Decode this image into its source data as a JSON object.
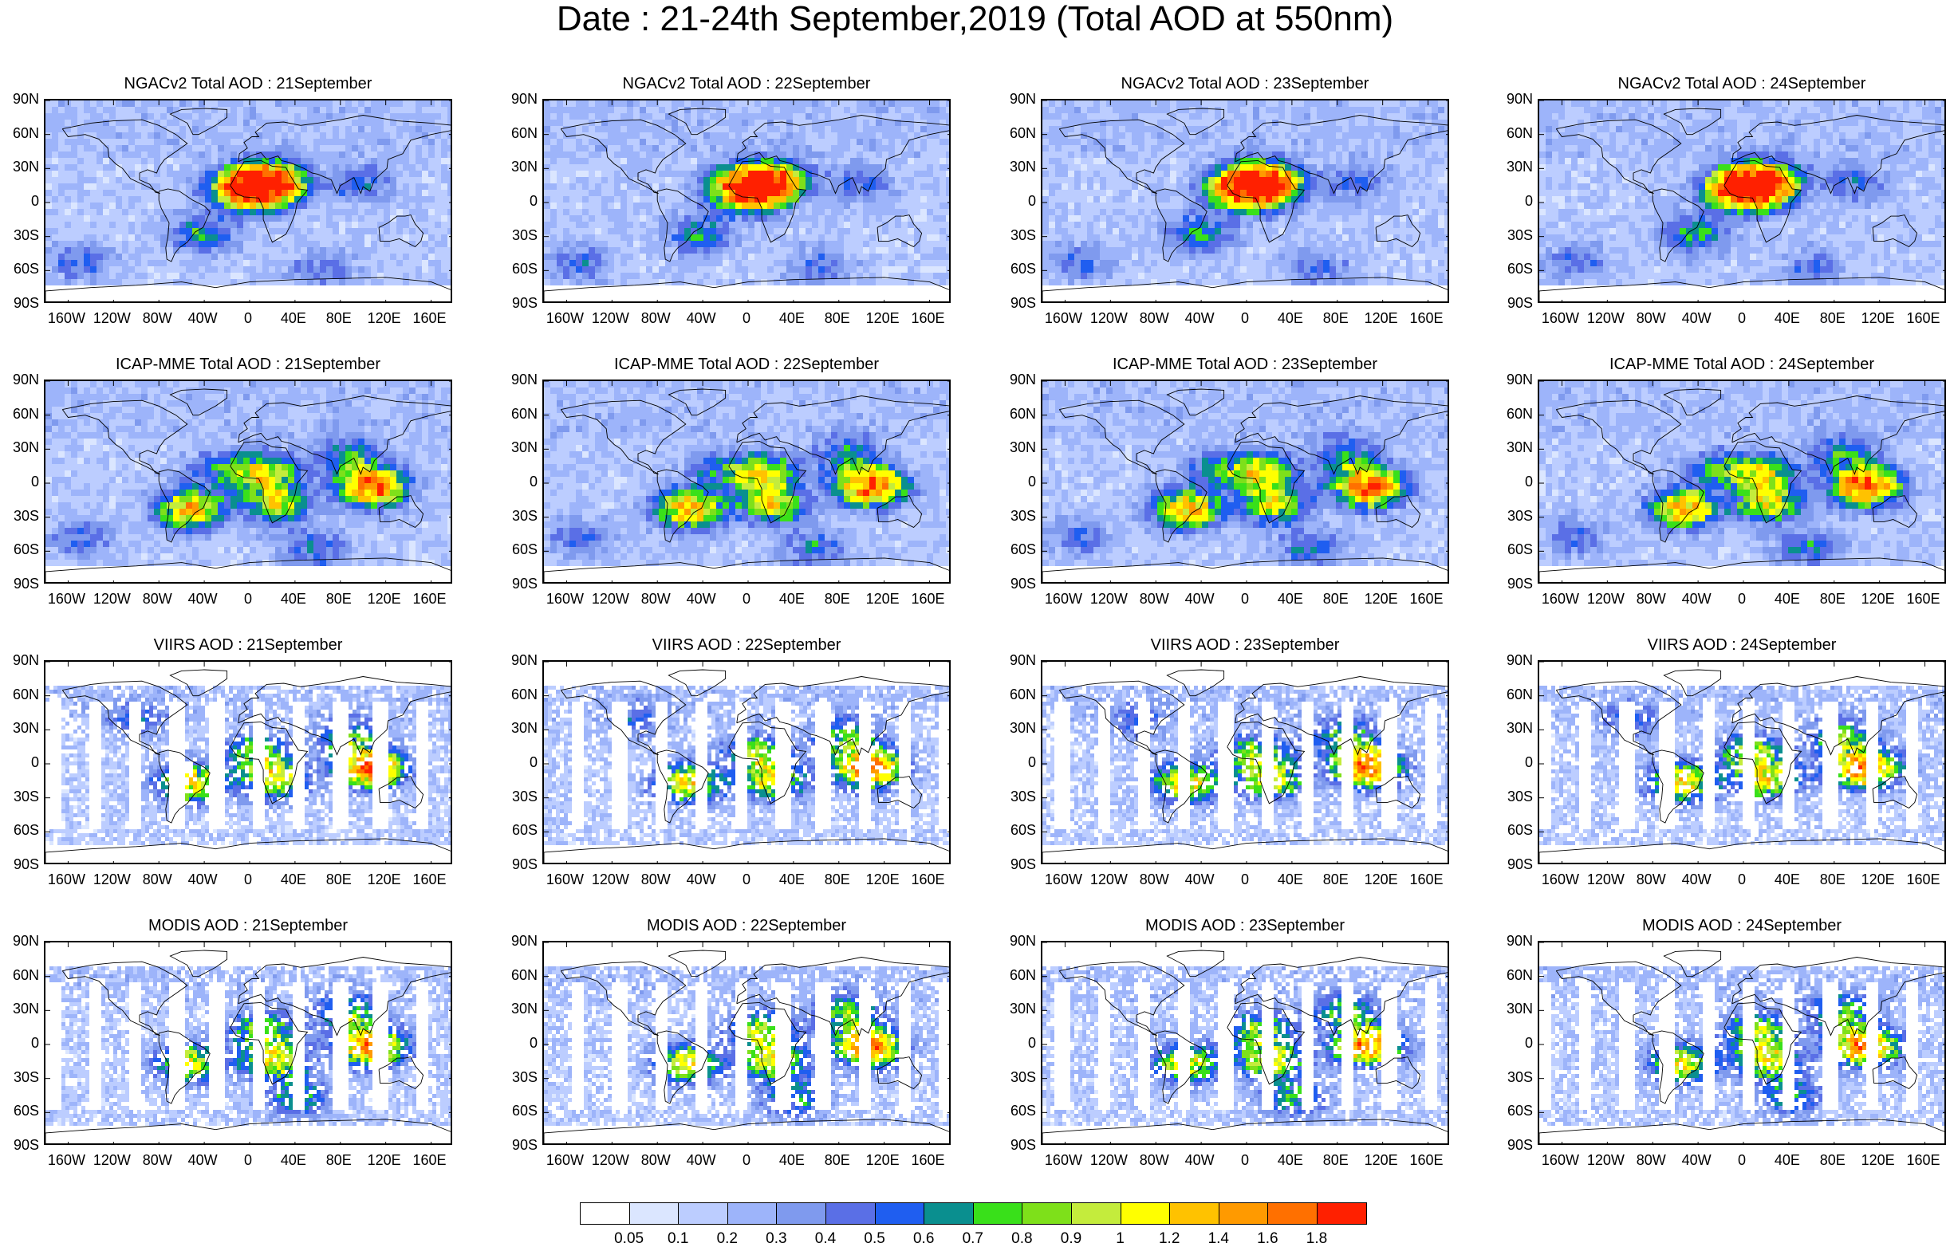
{
  "title": "Date : 21-24th September,2019 (Total AOD at 550nm)",
  "rows": [
    {
      "source": "NGACv2",
      "titles": [
        "NGACv2 Total AOD : 21September",
        "NGACv2 Total AOD : 22September",
        "NGACv2 Total AOD : 23September",
        "NGACv2 Total AOD : 24September"
      ]
    },
    {
      "source": "ICAP-MME",
      "titles": [
        "ICAP-MME Total AOD : 21September",
        "ICAP-MME Total AOD : 22September",
        "ICAP-MME Total AOD : 23September",
        "ICAP-MME Total AOD : 24September"
      ]
    },
    {
      "source": "VIIRS",
      "titles": [
        "VIIRS AOD : 21September",
        "VIIRS AOD : 22September",
        "VIIRS AOD : 23September",
        "VIIRS AOD : 24September"
      ]
    },
    {
      "source": "MODIS",
      "titles": [
        "MODIS AOD : 21September",
        "MODIS AOD : 22September",
        "MODIS AOD : 23September",
        "MODIS AOD : 24September"
      ]
    }
  ],
  "axes": {
    "lat_labels": [
      "90N",
      "60N",
      "30N",
      "0",
      "30S",
      "60S",
      "90S"
    ],
    "lon_labels": [
      "160W",
      "120W",
      "80W",
      "40W",
      "0",
      "40E",
      "80E",
      "120E",
      "160E"
    ]
  },
  "colorbar": {
    "labels": [
      "0.05",
      "0.1",
      "0.2",
      "0.3",
      "0.4",
      "0.5",
      "0.6",
      "0.7",
      "0.8",
      "0.9",
      "1",
      "1.2",
      "1.4",
      "1.6",
      "1.8"
    ],
    "colors": [
      "#ffffff",
      "#dbe6ff",
      "#bccdff",
      "#9db4fa",
      "#7f9aee",
      "#5a6fe6",
      "#1f5ef0",
      "#0a8f8f",
      "#39e01a",
      "#7ee01a",
      "#c4ec3c",
      "#ffff00",
      "#ffc200",
      "#ff9a00",
      "#ff7000",
      "#ff2000"
    ]
  }
}
